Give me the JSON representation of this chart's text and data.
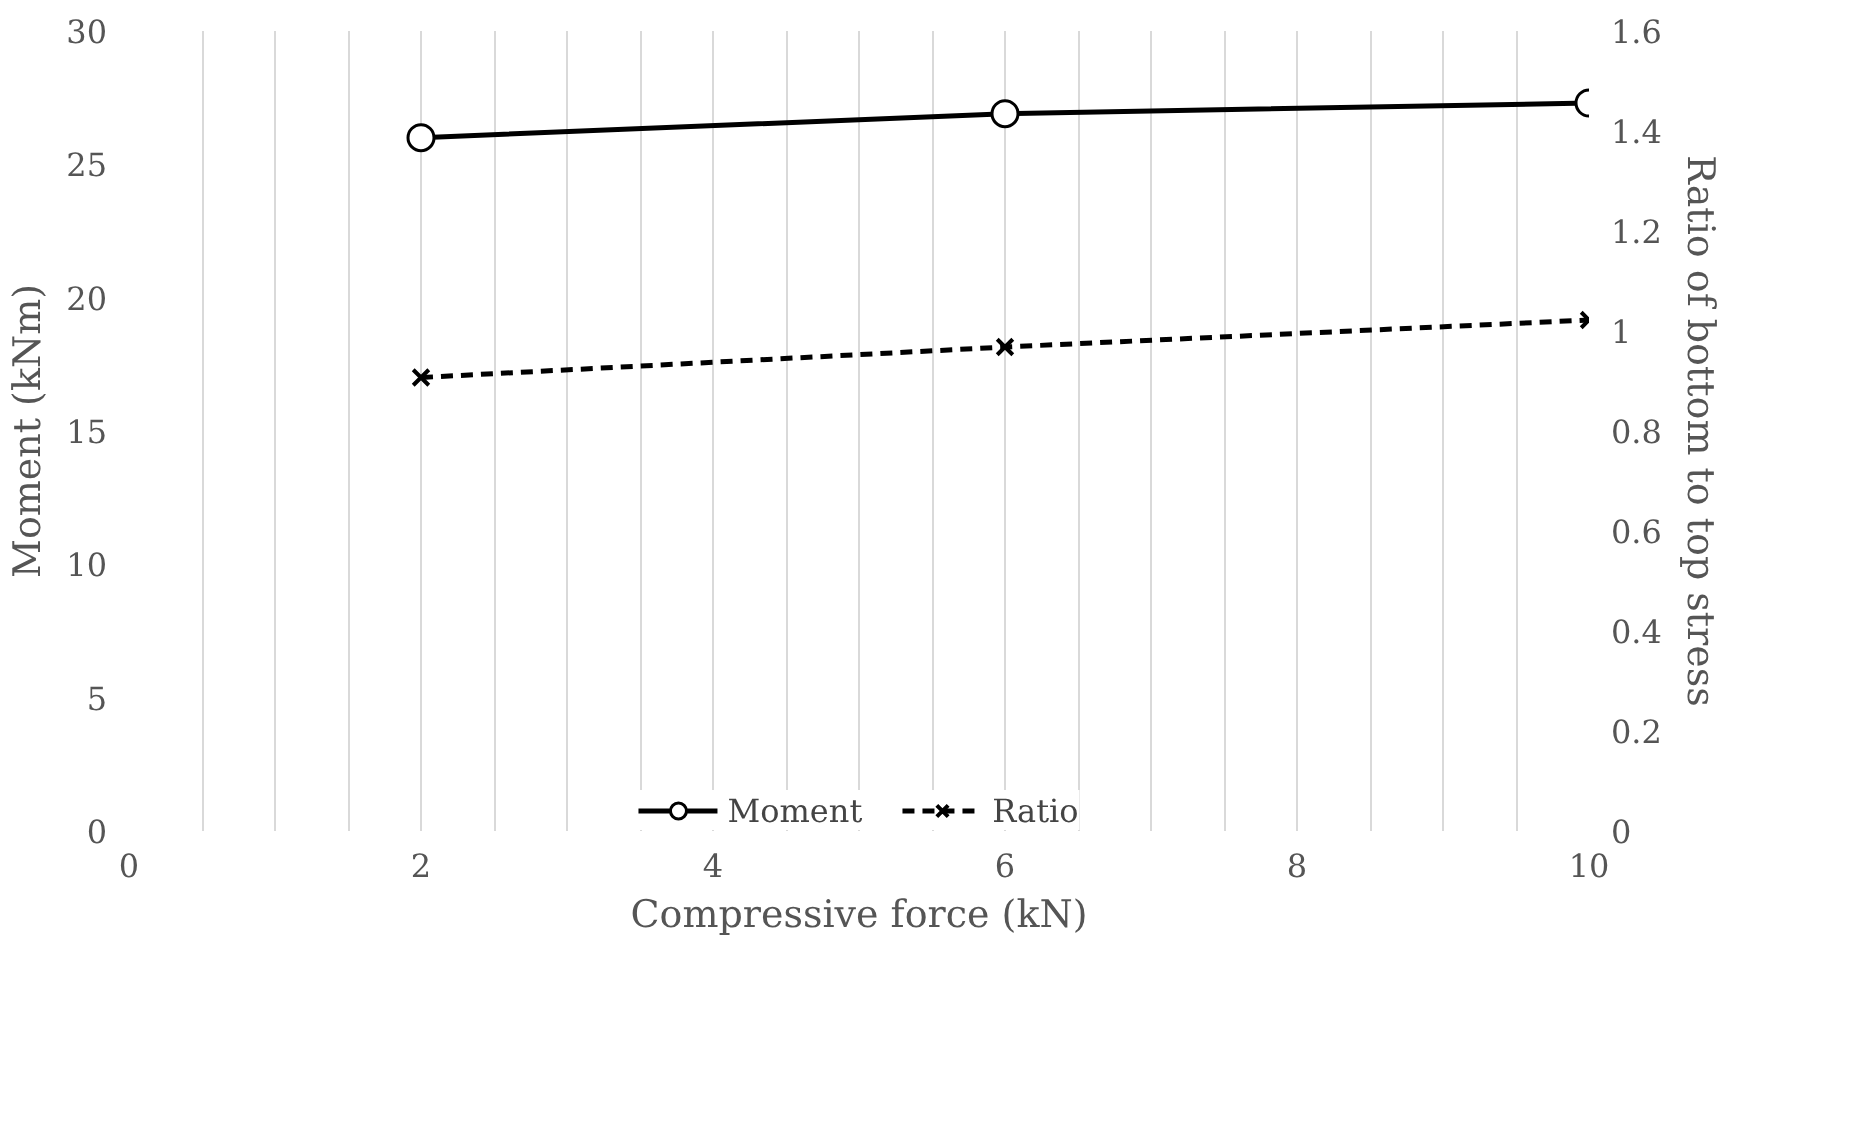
{
  "chart_data": {
    "type": "line",
    "xlabel": "Compressive force (kN)",
    "ylabel": "Moment (kNm)",
    "y2label": "Ratio of bottom to top stress",
    "x": [
      2,
      6,
      10
    ],
    "series": [
      {
        "name": "Moment",
        "color": "#000000",
        "values": [
          26.0,
          26.9,
          27.3
        ],
        "marker": "circle",
        "line_style": "solid"
      },
      {
        "name": "Ratio",
        "color": "#000000",
        "values": [
          0.907,
          0.968,
          1.022
        ],
        "marker": "cross",
        "line_style": "dashed",
        "axis": "y2"
      }
    ],
    "xlim": [
      0,
      10
    ],
    "xticks": [
      0,
      {
        "value": 0.5,
        "label": null
      },
      {
        "value": 1,
        "label": null
      },
      {
        "value": 1.5,
        "label": null
      },
      2,
      {
        "value": 2.5,
        "label": null
      },
      {
        "value": 3,
        "label": null
      },
      {
        "value": 3.5,
        "label": null
      },
      4,
      {
        "value": 4.5,
        "label": null
      },
      {
        "value": 5,
        "label": null
      },
      {
        "value": 5.5,
        "label": null
      },
      6,
      {
        "value": 6.5,
        "label": null
      },
      {
        "value": 7,
        "label": null
      },
      {
        "value": 7.5,
        "label": null
      },
      8,
      {
        "value": 8.5,
        "label": null
      },
      {
        "value": 9,
        "label": null
      },
      {
        "value": 9.5,
        "label": null
      },
      10
    ],
    "ylim": [
      0,
      30
    ],
    "yticks": [
      0,
      5,
      10,
      15,
      20,
      25,
      30
    ],
    "y2lim": [
      0,
      1.6
    ],
    "y2ticks": [
      0,
      0.2,
      0.4,
      0.6,
      0.8,
      1,
      1.2,
      1.4,
      1.6
    ],
    "grid": "x",
    "legend": "bottom"
  }
}
